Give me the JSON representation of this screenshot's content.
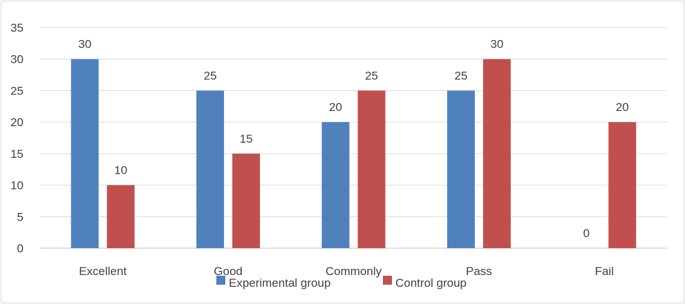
{
  "chart_data": {
    "type": "bar",
    "title": "",
    "xlabel": "",
    "ylabel": "",
    "categories": [
      "Excellent",
      "Good",
      "Commonly",
      "Pass",
      "Fail"
    ],
    "series": [
      {
        "name": "Experimental group",
        "values": [
          30,
          25,
          20,
          25,
          0
        ],
        "color": "#4f81bd"
      },
      {
        "name": "Control group",
        "values": [
          10,
          15,
          25,
          30,
          20
        ],
        "color": "#c0504d"
      }
    ],
    "ylim": [
      0,
      35
    ],
    "yticks": [
      0,
      5,
      10,
      15,
      20,
      25,
      30,
      35
    ],
    "grid": true,
    "legend_position": "bottom",
    "data_labels": true
  }
}
